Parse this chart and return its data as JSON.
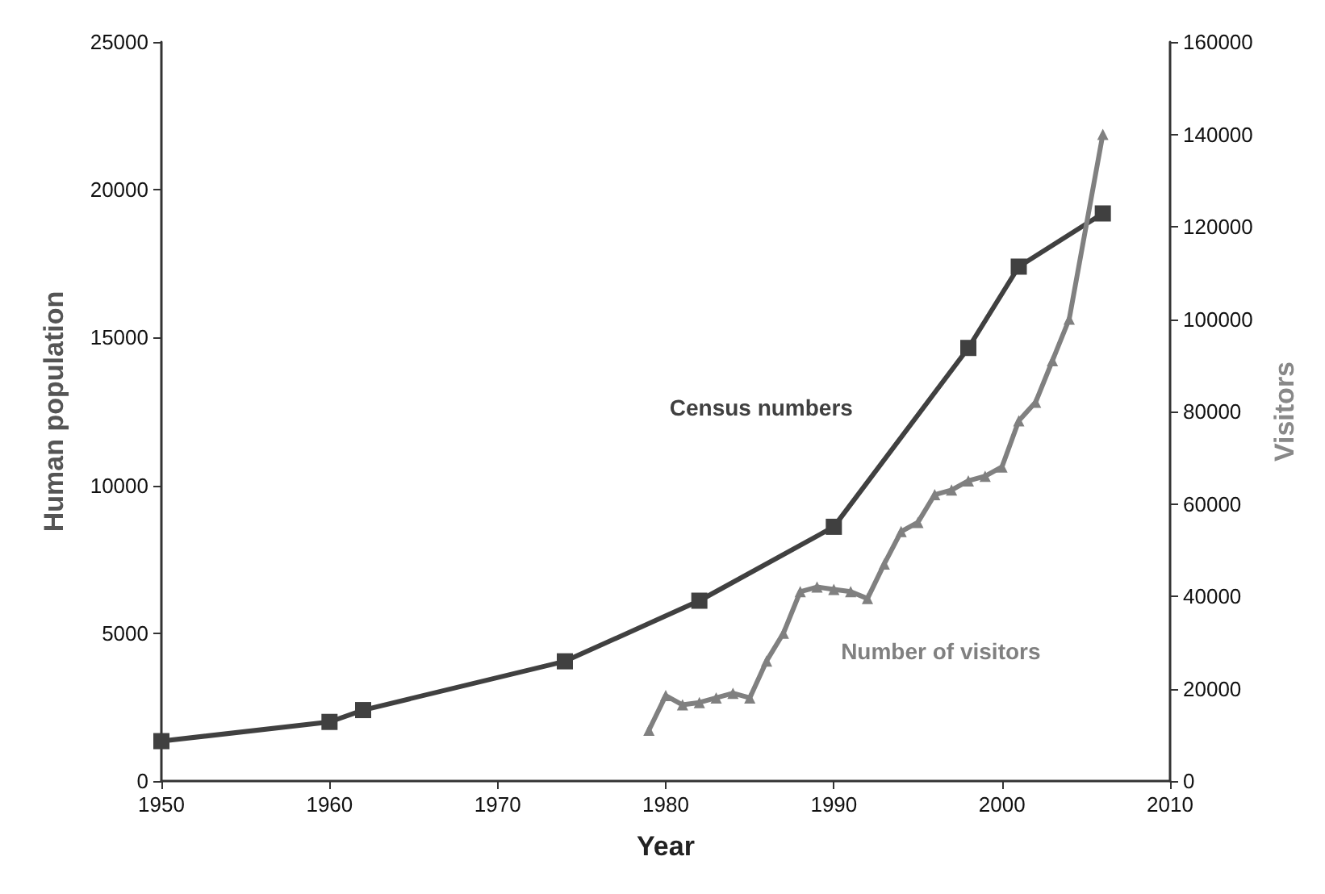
{
  "chart_data": {
    "type": "line",
    "xlabel": "Year",
    "ylabel": "Human population",
    "y2label": "Visitors",
    "xlim": [
      1950,
      2010
    ],
    "xticks": [
      1950,
      1960,
      1970,
      1980,
      1990,
      2000,
      2010
    ],
    "ylim": [
      0,
      25000
    ],
    "yticks": [
      0,
      5000,
      10000,
      15000,
      20000,
      25000
    ],
    "y2lim": [
      0,
      160000
    ],
    "y2ticks": [
      0,
      20000,
      40000,
      60000,
      80000,
      100000,
      120000,
      140000,
      160000
    ],
    "grid": false,
    "legend": false,
    "series": [
      {
        "name": "Census numbers",
        "color": "#404040",
        "marker": "square",
        "x": [
          1950,
          1960,
          1962,
          1974,
          1982,
          1990,
          1998,
          2001,
          2006
        ],
        "values": [
          1350,
          2000,
          2400,
          4050,
          6100,
          8600,
          14650,
          17400,
          19200
        ]
      },
      {
        "name": "Number of visitors",
        "color": "#808080",
        "marker": "triangle",
        "axis": "y2",
        "x": [
          1979,
          1980,
          1981,
          1982,
          1983,
          1984,
          1985,
          1986,
          1987,
          1988,
          1989,
          1990,
          1991,
          1992,
          1993,
          1994,
          1995,
          1996,
          1997,
          1998,
          1999,
          2000,
          2001,
          2002,
          2003,
          2004,
          2006
        ],
        "values": [
          11000,
          18500,
          16500,
          17000,
          18000,
          19000,
          18000,
          26000,
          32000,
          41000,
          42000,
          41500,
          41000,
          39500,
          47000,
          54000,
          56000,
          62000,
          63000,
          65000,
          66000,
          68000,
          78000,
          82000,
          91000,
          100000,
          140000
        ]
      }
    ]
  }
}
